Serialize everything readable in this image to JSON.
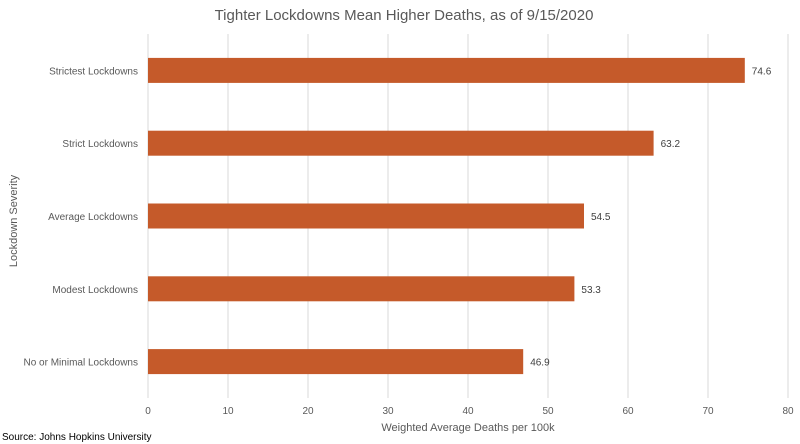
{
  "chart_data": {
    "type": "bar",
    "orientation": "horizontal",
    "title": "Tighter Lockdowns Mean Higher Deaths, as of 9/15/2020",
    "xlabel": "Weighted Average Deaths per 100k",
    "ylabel": "Lockdown Severity",
    "categories": [
      "Strictest Lockdowns",
      "Strict Lockdowns",
      "Average Lockdowns",
      "Modest Lockdowns",
      "No or Minimal Lockdowns"
    ],
    "values": [
      74.6,
      63.2,
      54.5,
      53.3,
      46.9
    ],
    "value_labels": [
      "74.6",
      "63.2",
      "54.5",
      "53.3",
      "46.9"
    ],
    "xlim": [
      0,
      80
    ],
    "xticks": [
      "0",
      "10",
      "20",
      "30",
      "40",
      "50",
      "60",
      "70",
      "80"
    ],
    "grid": "vertical",
    "legend": "none",
    "bar_color": "#c55a2a",
    "source": "Source: Johns Hopkins University"
  }
}
